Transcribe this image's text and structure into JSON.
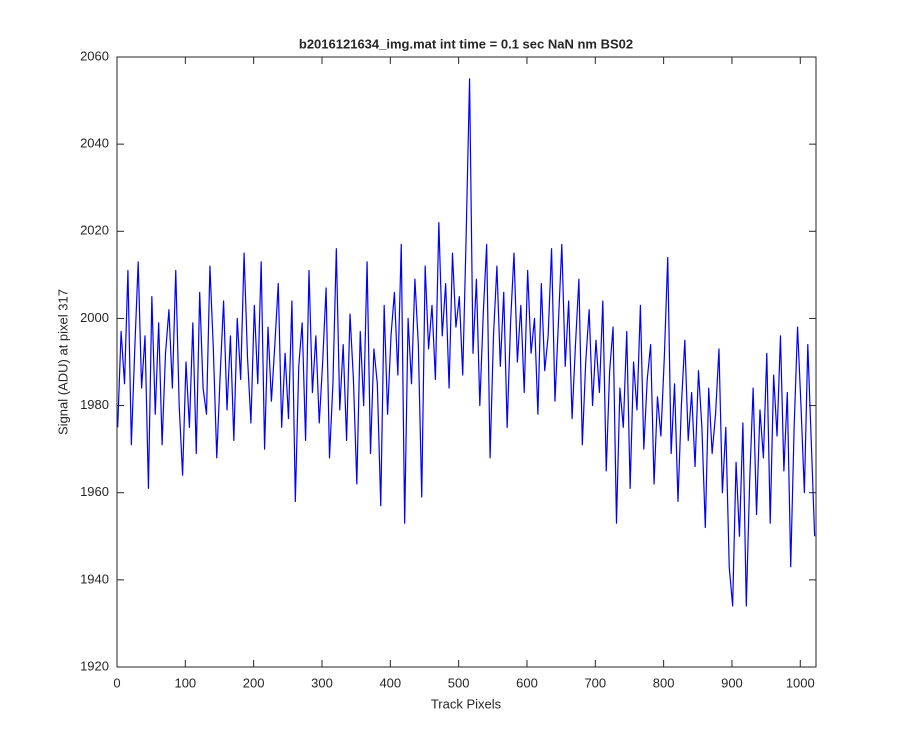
{
  "chart_data": {
    "type": "line",
    "title": "b2016121634_img.mat int time = 0.1 sec  NaN nm BS02",
    "x_label": "Track Pixels",
    "y_label": "Signal (ADU) at pixel 317",
    "xlim": [
      0,
      1023
    ],
    "ylim": [
      1920,
      2060
    ],
    "xticks": [
      0,
      100,
      200,
      300,
      400,
      500,
      600,
      700,
      800,
      900,
      1000
    ],
    "yticks": [
      1920,
      1940,
      1960,
      1980,
      2000,
      2020,
      2040,
      2060
    ],
    "x": [
      1,
      6,
      11,
      16,
      21,
      26,
      31,
      36,
      41,
      46,
      51,
      56,
      61,
      66,
      71,
      76,
      81,
      86,
      91,
      96,
      101,
      106,
      111,
      116,
      121,
      126,
      131,
      136,
      141,
      146,
      151,
      156,
      161,
      166,
      171,
      176,
      181,
      186,
      191,
      196,
      201,
      206,
      211,
      216,
      221,
      226,
      231,
      236,
      241,
      246,
      251,
      256,
      261,
      266,
      271,
      276,
      281,
      286,
      291,
      296,
      301,
      306,
      311,
      316,
      321,
      326,
      331,
      336,
      341,
      346,
      351,
      356,
      361,
      366,
      371,
      376,
      381,
      386,
      391,
      396,
      401,
      406,
      411,
      416,
      421,
      426,
      431,
      436,
      441,
      446,
      451,
      456,
      461,
      466,
      471,
      476,
      481,
      486,
      491,
      496,
      501,
      506,
      511,
      516,
      521,
      526,
      531,
      536,
      541,
      546,
      551,
      556,
      561,
      566,
      571,
      576,
      581,
      586,
      591,
      596,
      601,
      606,
      611,
      616,
      621,
      626,
      631,
      636,
      641,
      646,
      651,
      656,
      661,
      666,
      671,
      676,
      681,
      686,
      691,
      696,
      701,
      706,
      711,
      716,
      721,
      726,
      731,
      736,
      741,
      746,
      751,
      756,
      761,
      766,
      771,
      776,
      781,
      786,
      791,
      796,
      801,
      806,
      811,
      816,
      821,
      826,
      831,
      836,
      841,
      846,
      851,
      856,
      861,
      866,
      871,
      876,
      881,
      886,
      891,
      896,
      901,
      906,
      911,
      916,
      921,
      926,
      931,
      936,
      941,
      946,
      951,
      956,
      961,
      966,
      971,
      976,
      981,
      986,
      991,
      996,
      1001,
      1006,
      1011,
      1016,
      1021
    ],
    "series": [
      {
        "name": "signal",
        "color": "#0000ff",
        "values": [
          1975,
          1997,
          1985,
          2011,
          1971,
          1993,
          2013,
          1984,
          1996,
          1961,
          2005,
          1978,
          1999,
          1971,
          1992,
          2002,
          1984,
          2011,
          1980,
          1964,
          1990,
          1975,
          1999,
          1969,
          2006,
          1984,
          1978,
          2012,
          1993,
          1968,
          1987,
          2004,
          1979,
          1996,
          1972,
          2000,
          1986,
          2015,
          1991,
          1976,
          2003,
          1985,
          2013,
          1970,
          1998,
          1981,
          1994,
          2008,
          1975,
          1992,
          1977,
          2004,
          1958,
          1989,
          1999,
          1972,
          2011,
          1983,
          1996,
          1976,
          1990,
          2007,
          1968,
          1985,
          2016,
          1979,
          1994,
          1972,
          2001,
          1986,
          1962,
          1997,
          1980,
          2013,
          1969,
          1993,
          1985,
          1957,
          2003,
          1978,
          1996,
          2006,
          1987,
          2017,
          1953,
          2000,
          1985,
          2009,
          1994,
          1959,
          2012,
          1993,
          2003,
          1986,
          2022,
          1996,
          2008,
          1984,
          2015,
          1998,
          2005,
          1987,
          2019,
          2055,
          1992,
          2009,
          1980,
          2001,
          2017,
          1968,
          1996,
          2012,
          1989,
          2006,
          1975,
          1999,
          2015,
          1990,
          2003,
          1983,
          2011,
          1992,
          2000,
          1978,
          2008,
          1988,
          1996,
          2016,
          1981,
          1999,
          2017,
          1989,
          2004,
          1977,
          1994,
          2009,
          1971,
          1990,
          2002,
          1980,
          1995,
          1983,
          2004,
          1965,
          1988,
          1998,
          1953,
          1984,
          1975,
          1997,
          1961,
          1990,
          1979,
          2003,
          1970,
          1986,
          1994,
          1962,
          1982,
          1973,
          1991,
          2014,
          1969,
          1985,
          1958,
          1980,
          1995,
          1972,
          1983,
          1966,
          1988,
          1975,
          1952,
          1984,
          1969,
          1978,
          1993,
          1960,
          1975,
          1943,
          1934,
          1967,
          1950,
          1976,
          1934,
          1963,
          1984,
          1955,
          1979,
          1968,
          1992,
          1953,
          1987,
          1973,
          1996,
          1965,
          1983,
          1943,
          1975,
          1998,
          1980,
          1960,
          1994,
          1972,
          1950
        ]
      }
    ]
  }
}
